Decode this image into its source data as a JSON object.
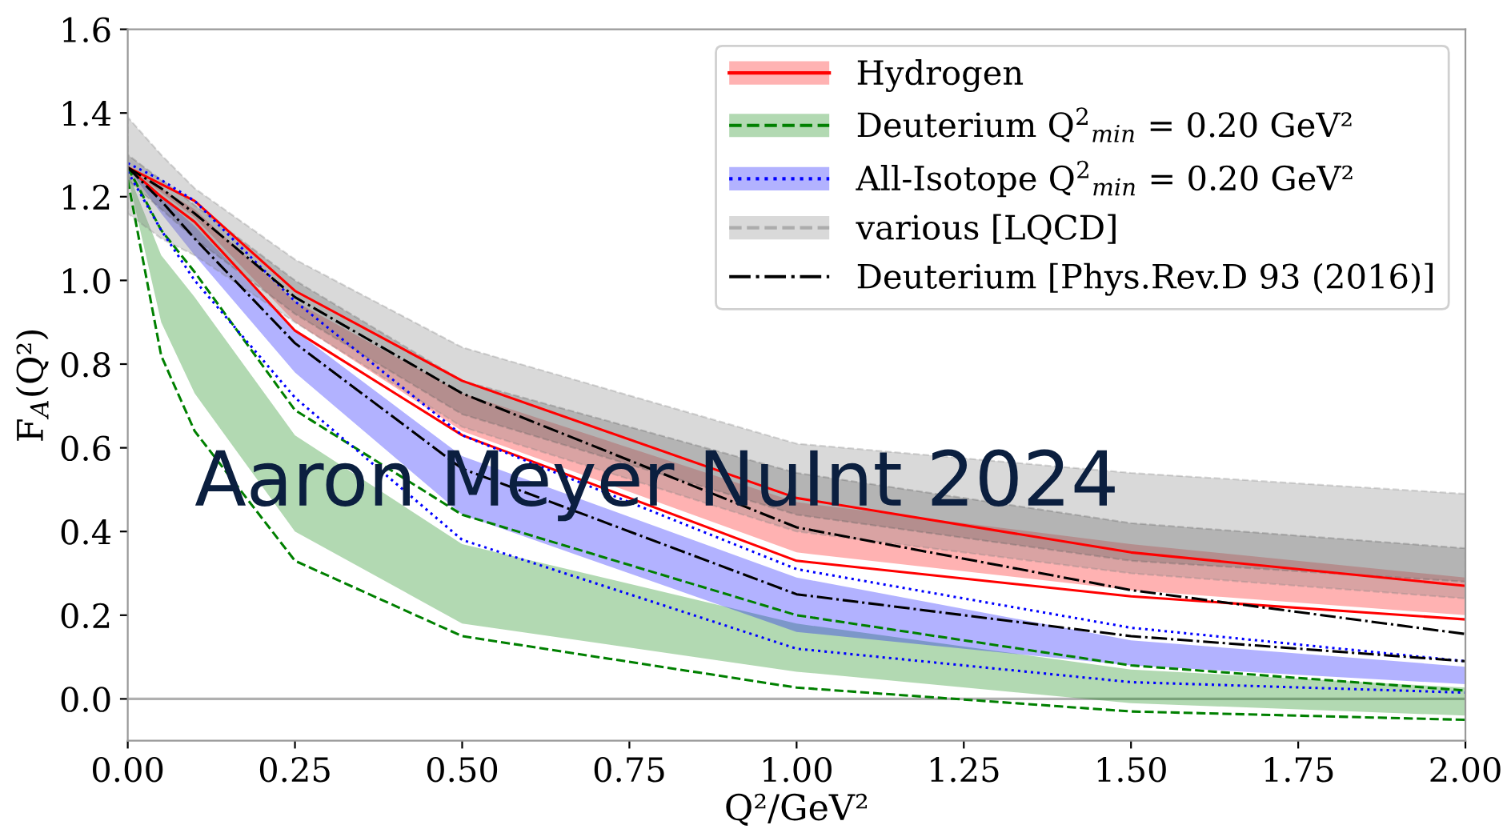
{
  "chart_data": {
    "type": "line",
    "xlabel": "Q²/GeV²",
    "ylabel": "F$_{A}$(Q²)",
    "x": [
      0,
      0.05,
      0.1,
      0.25,
      0.5,
      1.0,
      1.5,
      2.0
    ],
    "xlim": [
      0,
      2
    ],
    "xticks": [
      {
        "value": 0,
        "label": "0.00"
      },
      0.25,
      {
        "value": 0.5,
        "label": "0.50"
      },
      0.75,
      {
        "value": 1,
        "label": "1.00"
      },
      1.25,
      {
        "value": 1.5,
        "label": "1.50"
      },
      1.75,
      {
        "value": 2,
        "label": "2.00"
      }
    ],
    "ylim": [
      -0.1,
      1.6
    ],
    "yticks": [
      {
        "value": 0,
        "label": "0.0"
      },
      0.2,
      0.4,
      0.6,
      0.8,
      {
        "value": 1,
        "label": "1.0"
      },
      1.2,
      1.4,
      1.6
    ],
    "legend": "top right",
    "ref_lines": [
      {
        "axis": "y",
        "value": 0,
        "color": "#b0b0b0"
      }
    ],
    "annotations": [
      "Aaron Meyer NuInt 2024"
    ],
    "series": [
      {
        "type": "area",
        "name": "Hydrogen",
        "color": "#ff0000",
        "values": [
          null,
          null,
          null,
          null,
          null,
          null,
          null,
          null
        ],
        "upper": [
          1.27,
          1.22,
          1.17,
          0.95,
          0.73,
          0.47,
          0.37,
          0.29
        ],
        "lower": [
          1.27,
          1.21,
          1.15,
          0.9,
          0.64,
          0.35,
          0.26,
          0.2
        ]
      },
      {
        "color": "#ff0000",
        "line_style": "solid",
        "values": [
          1.27,
          1.23,
          1.19,
          0.975,
          0.76,
          0.48,
          0.35,
          0.27
        ]
      },
      {
        "color": "#ff0000",
        "line_style": "solid",
        "values": [
          1.27,
          1.2,
          1.14,
          0.88,
          0.63,
          0.33,
          0.245,
          0.19
        ]
      },
      {
        "type": "area",
        "name": "Deuterium Q$^{2}$$_{min}$ = 0.20 GeV²",
        "color": "#008000",
        "values": [
          null,
          null,
          null,
          null,
          null,
          null,
          null,
          null
        ],
        "upper": [
          1.26,
          1.06,
          0.96,
          0.63,
          0.37,
          0.18,
          0.07,
          0.027
        ],
        "lower": [
          1.25,
          0.9,
          0.73,
          0.4,
          0.18,
          0.065,
          -0.01,
          -0.04
        ]
      },
      {
        "color": "#008000",
        "line_style": "dashed",
        "values": [
          1.27,
          1.12,
          1.02,
          0.69,
          0.44,
          0.2,
          0.08,
          0.02
        ]
      },
      {
        "color": "#008000",
        "line_style": "dashed",
        "values": [
          1.24,
          0.82,
          0.64,
          0.33,
          0.15,
          0.027,
          -0.03,
          -0.05
        ]
      },
      {
        "type": "area",
        "name": "All-Isotope Q$^{2}$$_{min}$ = 0.20 GeV²",
        "color": "#0000ff",
        "values": [
          null,
          null,
          null,
          null,
          null,
          null,
          null,
          null
        ],
        "upper": [
          1.27,
          1.2,
          1.13,
          0.88,
          0.58,
          0.29,
          0.14,
          0.077
        ],
        "lower": [
          1.27,
          1.16,
          1.06,
          0.78,
          0.44,
          0.16,
          0.08,
          0.035
        ]
      },
      {
        "color": "#0000ff",
        "line_style": "dotted",
        "values": [
          1.28,
          1.24,
          1.19,
          0.95,
          0.63,
          0.31,
          0.17,
          0.09
        ]
      },
      {
        "color": "#0000ff",
        "line_style": "dotted",
        "values": [
          1.26,
          1.12,
          1.0,
          0.72,
          0.38,
          0.12,
          0.04,
          0.015
        ]
      },
      {
        "type": "area",
        "name": "various [LQCD]",
        "color": "#808080",
        "line_style": "dashed",
        "values": [
          null,
          null,
          null,
          null,
          null,
          null,
          null,
          null
        ],
        "upper": [
          1.39,
          1.3,
          1.22,
          1.05,
          0.84,
          0.61,
          0.54,
          0.49
        ],
        "lower": [
          1.16,
          1.1,
          1.06,
          0.9,
          0.65,
          0.4,
          0.3,
          0.24
        ]
      },
      {
        "type": "area",
        "color": "#606060",
        "line_style": "dashed",
        "values": [
          null,
          null,
          null,
          null,
          null,
          null,
          null,
          null
        ],
        "upper": [
          1.3,
          1.24,
          1.18,
          1.0,
          0.76,
          0.54,
          0.42,
          0.36
        ],
        "lower": [
          1.24,
          1.17,
          1.1,
          0.92,
          0.68,
          0.44,
          0.33,
          0.28
        ]
      },
      {
        "name": "Deuterium [Phys.Rev.D 93 (2016)]",
        "color": "#000000",
        "line_style": "dashdot",
        "values": [
          1.27,
          1.22,
          1.16,
          0.96,
          0.73,
          0.41,
          0.26,
          0.155
        ]
      },
      {
        "color": "#000000",
        "line_style": "dashdot",
        "values": [
          1.27,
          1.19,
          1.1,
          0.85,
          0.55,
          0.25,
          0.15,
          0.09
        ]
      }
    ]
  }
}
